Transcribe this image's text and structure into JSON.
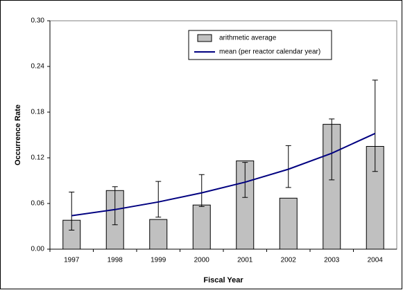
{
  "chart_data": {
    "type": "bar_line_error",
    "x_label": "Fiscal Year",
    "y_label": "Occurrence Rate",
    "categories": [
      "1997",
      "1998",
      "1999",
      "2000",
      "2001",
      "2002",
      "2003",
      "2004"
    ],
    "ylim": [
      0,
      0.3
    ],
    "yticks": [
      {
        "value": 0,
        "label": "0.00"
      },
      0.06,
      0.12,
      0.18,
      0.24,
      {
        "value": 0.3,
        "label": "0.30"
      }
    ],
    "series": [
      {
        "name": "arithmetic average",
        "type": "bar",
        "color": "#c0c0c0",
        "values": [
          0.038,
          0.077,
          0.039,
          0.058,
          0.116,
          0.067,
          0.164,
          0.135
        ],
        "error_upper": [
          0.075,
          0.082,
          0.089,
          0.098,
          0.114,
          0.136,
          0.171,
          0.222
        ],
        "error_lower": [
          0.025,
          0.032,
          0.042,
          0.056,
          0.068,
          0.081,
          0.091,
          0.102
        ]
      },
      {
        "name": "mean (per reactor calendar year)",
        "type": "line",
        "color": "#000080",
        "values": [
          0.044,
          0.052,
          0.062,
          0.074,
          0.088,
          0.105,
          0.126,
          0.152
        ]
      }
    ]
  }
}
